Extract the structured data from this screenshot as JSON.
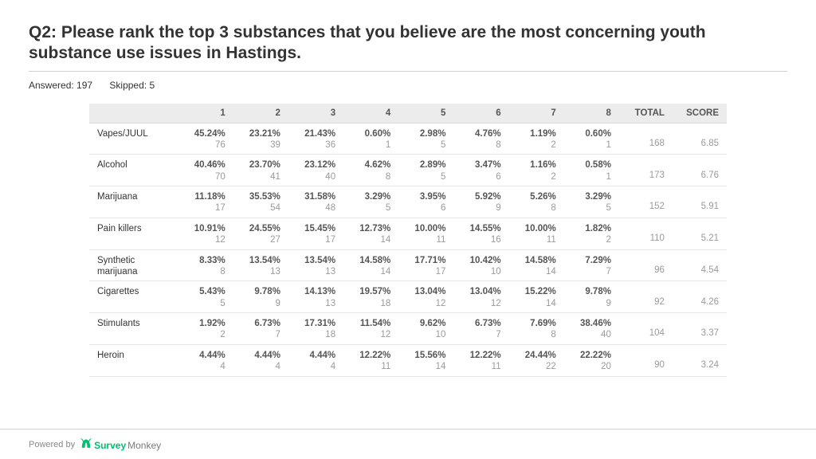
{
  "title": "Q2: Please rank the top 3 substances that you believe are the most concerning youth substance use issues in Hastings.",
  "answered_label": "Answered: 197",
  "skipped_label": "Skipped: 5",
  "table": {
    "rank_headers": [
      "1",
      "2",
      "3",
      "4",
      "5",
      "6",
      "7",
      "8"
    ],
    "total_header": "TOTAL",
    "score_header": "SCORE",
    "rows": [
      {
        "label": "Vapes/JUUL",
        "cells": [
          {
            "pct": "45.24%",
            "cnt": "76"
          },
          {
            "pct": "23.21%",
            "cnt": "39"
          },
          {
            "pct": "21.43%",
            "cnt": "36"
          },
          {
            "pct": "0.60%",
            "cnt": "1"
          },
          {
            "pct": "2.98%",
            "cnt": "5"
          },
          {
            "pct": "4.76%",
            "cnt": "8"
          },
          {
            "pct": "1.19%",
            "cnt": "2"
          },
          {
            "pct": "0.60%",
            "cnt": "1"
          }
        ],
        "total": "168",
        "score": "6.85"
      },
      {
        "label": "Alcohol",
        "cells": [
          {
            "pct": "40.46%",
            "cnt": "70"
          },
          {
            "pct": "23.70%",
            "cnt": "41"
          },
          {
            "pct": "23.12%",
            "cnt": "40"
          },
          {
            "pct": "4.62%",
            "cnt": "8"
          },
          {
            "pct": "2.89%",
            "cnt": "5"
          },
          {
            "pct": "3.47%",
            "cnt": "6"
          },
          {
            "pct": "1.16%",
            "cnt": "2"
          },
          {
            "pct": "0.58%",
            "cnt": "1"
          }
        ],
        "total": "173",
        "score": "6.76"
      },
      {
        "label": "Marijuana",
        "cells": [
          {
            "pct": "11.18%",
            "cnt": "17"
          },
          {
            "pct": "35.53%",
            "cnt": "54"
          },
          {
            "pct": "31.58%",
            "cnt": "48"
          },
          {
            "pct": "3.29%",
            "cnt": "5"
          },
          {
            "pct": "3.95%",
            "cnt": "6"
          },
          {
            "pct": "5.92%",
            "cnt": "9"
          },
          {
            "pct": "5.26%",
            "cnt": "8"
          },
          {
            "pct": "3.29%",
            "cnt": "5"
          }
        ],
        "total": "152",
        "score": "5.91"
      },
      {
        "label": "Pain killers",
        "cells": [
          {
            "pct": "10.91%",
            "cnt": "12"
          },
          {
            "pct": "24.55%",
            "cnt": "27"
          },
          {
            "pct": "15.45%",
            "cnt": "17"
          },
          {
            "pct": "12.73%",
            "cnt": "14"
          },
          {
            "pct": "10.00%",
            "cnt": "11"
          },
          {
            "pct": "14.55%",
            "cnt": "16"
          },
          {
            "pct": "10.00%",
            "cnt": "11"
          },
          {
            "pct": "1.82%",
            "cnt": "2"
          }
        ],
        "total": "110",
        "score": "5.21"
      },
      {
        "label": "Synthetic marijuana",
        "cells": [
          {
            "pct": "8.33%",
            "cnt": "8"
          },
          {
            "pct": "13.54%",
            "cnt": "13"
          },
          {
            "pct": "13.54%",
            "cnt": "13"
          },
          {
            "pct": "14.58%",
            "cnt": "14"
          },
          {
            "pct": "17.71%",
            "cnt": "17"
          },
          {
            "pct": "10.42%",
            "cnt": "10"
          },
          {
            "pct": "14.58%",
            "cnt": "14"
          },
          {
            "pct": "7.29%",
            "cnt": "7"
          }
        ],
        "total": "96",
        "score": "4.54"
      },
      {
        "label": "Cigarettes",
        "cells": [
          {
            "pct": "5.43%",
            "cnt": "5"
          },
          {
            "pct": "9.78%",
            "cnt": "9"
          },
          {
            "pct": "14.13%",
            "cnt": "13"
          },
          {
            "pct": "19.57%",
            "cnt": "18"
          },
          {
            "pct": "13.04%",
            "cnt": "12"
          },
          {
            "pct": "13.04%",
            "cnt": "12"
          },
          {
            "pct": "15.22%",
            "cnt": "14"
          },
          {
            "pct": "9.78%",
            "cnt": "9"
          }
        ],
        "total": "92",
        "score": "4.26"
      },
      {
        "label": "Stimulants",
        "cells": [
          {
            "pct": "1.92%",
            "cnt": "2"
          },
          {
            "pct": "6.73%",
            "cnt": "7"
          },
          {
            "pct": "17.31%",
            "cnt": "18"
          },
          {
            "pct": "11.54%",
            "cnt": "12"
          },
          {
            "pct": "9.62%",
            "cnt": "10"
          },
          {
            "pct": "6.73%",
            "cnt": "7"
          },
          {
            "pct": "7.69%",
            "cnt": "8"
          },
          {
            "pct": "38.46%",
            "cnt": "40"
          }
        ],
        "total": "104",
        "score": "3.37"
      },
      {
        "label": "Heroin",
        "cells": [
          {
            "pct": "4.44%",
            "cnt": "4"
          },
          {
            "pct": "4.44%",
            "cnt": "4"
          },
          {
            "pct": "4.44%",
            "cnt": "4"
          },
          {
            "pct": "12.22%",
            "cnt": "11"
          },
          {
            "pct": "15.56%",
            "cnt": "14"
          },
          {
            "pct": "12.22%",
            "cnt": "11"
          },
          {
            "pct": "24.44%",
            "cnt": "22"
          },
          {
            "pct": "22.22%",
            "cnt": "20"
          }
        ],
        "total": "90",
        "score": "3.24"
      }
    ]
  },
  "footer": {
    "powered_by": "Powered by",
    "brand1": "Survey",
    "brand2": "Monkey"
  },
  "colors": {
    "text": "#333333",
    "muted": "#9a9a9a",
    "header_bg": "#ececec",
    "border": "#d0d0d0",
    "row_border": "#e6e6e6",
    "brand": "#00bf6f"
  }
}
